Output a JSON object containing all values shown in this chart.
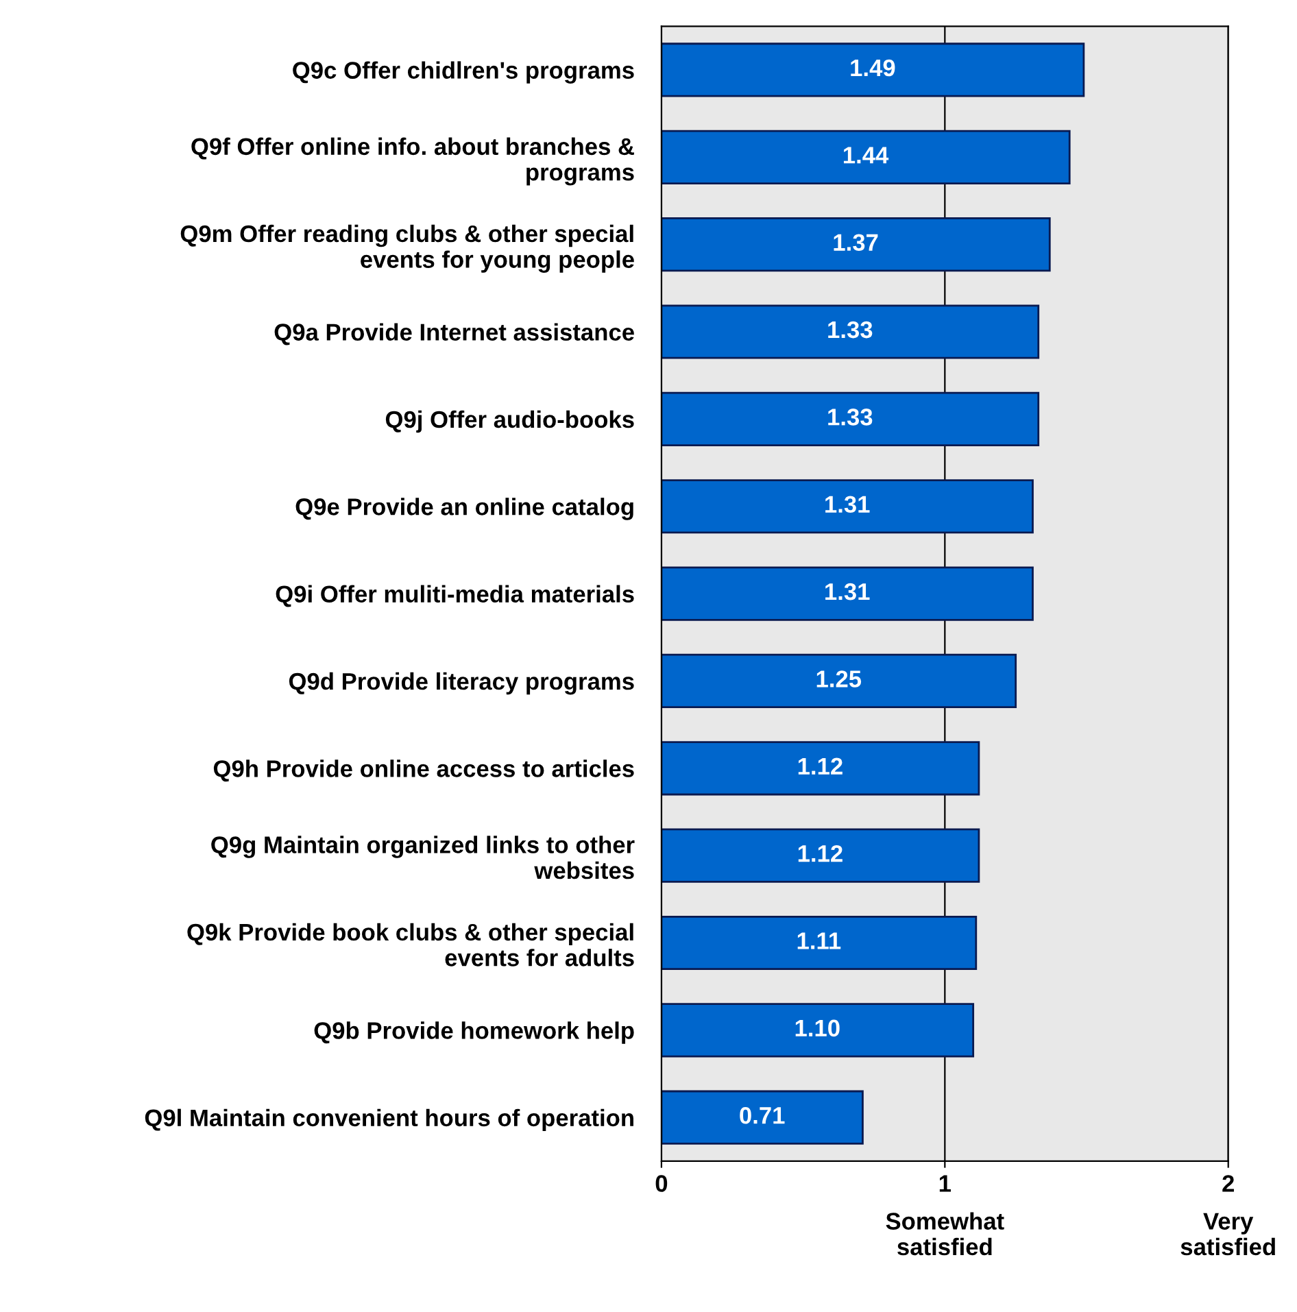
{
  "chart_data": {
    "type": "bar",
    "orientation": "horizontal",
    "categories": [
      "Q9c Offer chidlren's programs",
      "Q9f Offer online info. about branches &\nprograms",
      "Q9m Offer reading clubs & other special\nevents for young people",
      "Q9a Provide Internet assistance",
      "Q9j Offer audio-books",
      "Q9e Provide an online catalog",
      "Q9i Offer muliti-media materials",
      "Q9d Provide literacy programs",
      "Q9h Provide online access to articles",
      "Q9g Maintain organized links to other\nwebsites",
      "Q9k Provide book clubs & other special\nevents for adults",
      "Q9b Provide homework help",
      "Q9l Maintain convenient hours of operation"
    ],
    "values": [
      1.49,
      1.44,
      1.37,
      1.33,
      1.33,
      1.31,
      1.31,
      1.25,
      1.12,
      1.12,
      1.11,
      1.1,
      0.71
    ],
    "value_labels": [
      "1.49",
      "1.44",
      "1.37",
      "1.33",
      "1.33",
      "1.31",
      "1.31",
      "1.25",
      "1.12",
      "1.12",
      "1.11",
      "1.10",
      "0.71"
    ],
    "color": "#0066cc",
    "xlim": [
      0,
      2
    ],
    "xticks": [
      0,
      1,
      2
    ],
    "grid": "x",
    "annotations": [
      "Somewhat\nsatisfied",
      "Very\nsatisfied"
    ]
  }
}
